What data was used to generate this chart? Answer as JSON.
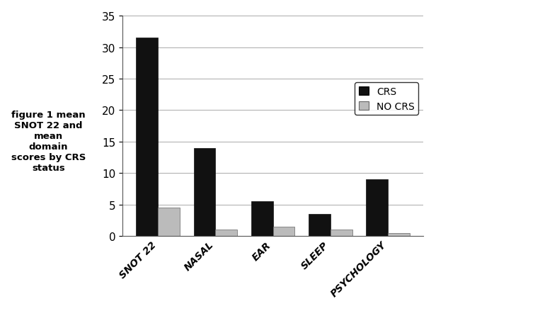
{
  "categories": [
    "SNOT 22",
    "NASAL",
    "EAR",
    "SLEEP",
    "PSYCHOLOGY"
  ],
  "crs_values": [
    31.5,
    14.0,
    5.5,
    3.5,
    9.0
  ],
  "no_crs_values": [
    4.5,
    1.0,
    1.5,
    1.0,
    0.5
  ],
  "crs_color": "#111111",
  "no_crs_color": "#bbbbbb",
  "ylim": [
    0,
    35
  ],
  "yticks": [
    0,
    5,
    10,
    15,
    20,
    25,
    30,
    35
  ],
  "legend_labels": [
    "CRS",
    "NO CRS"
  ],
  "title_text": "figure 1 mean\nSNOT 22 and\nmean\ndomain\nscores by CRS\nstatus",
  "bar_width": 0.38,
  "background_color": "#ffffff",
  "grid_color": "#aaaaaa"
}
